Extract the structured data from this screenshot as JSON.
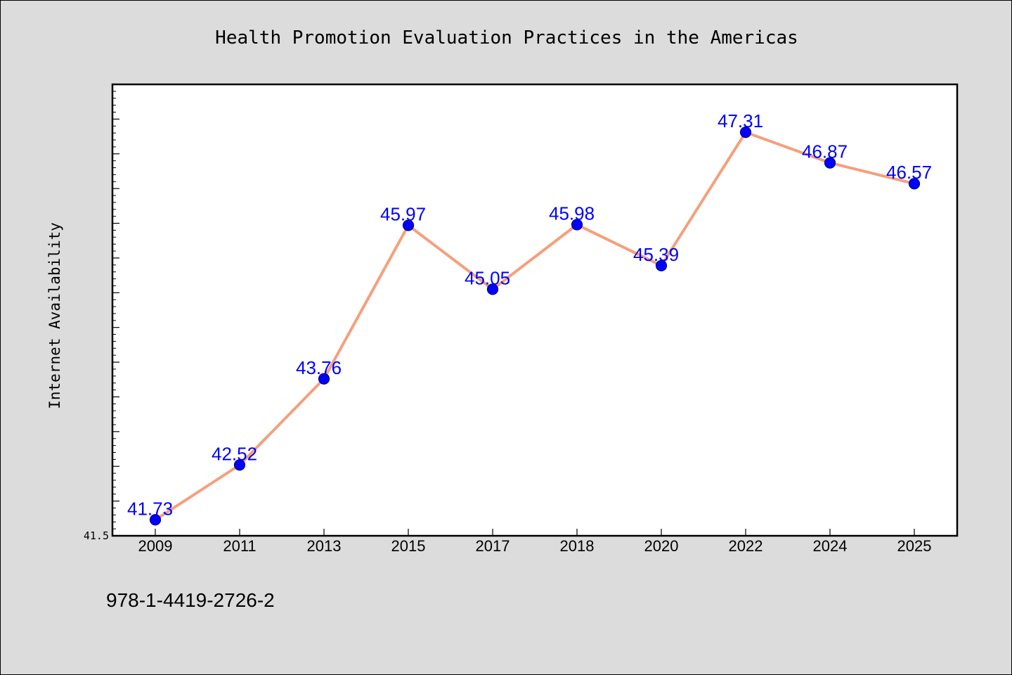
{
  "chart_data": {
    "type": "line",
    "title": "Health Promotion Evaluation Practices in the Americas",
    "ylabel": "Internet Availability",
    "xlabel": "",
    "categories": [
      "2009",
      "2011",
      "2013",
      "2015",
      "2017",
      "2018",
      "2020",
      "2022",
      "2024",
      "2025"
    ],
    "series": [
      {
        "values": [
          41.73,
          42.52,
          43.76,
          45.97,
          45.05,
          45.98,
          45.39,
          47.31,
          46.87,
          46.57
        ]
      }
    ],
    "data_labels": [
      "41.73",
      "42.52",
      "43.76",
      "45.97",
      "45.05",
      "45.98",
      "45.39",
      "47.31",
      "46.87",
      "46.57]"
    ],
    "ylim": [
      41.5,
      48.0
    ],
    "yticks_labeled": [
      "41.5"
    ],
    "grid": false,
    "legend": "none",
    "colors": {
      "line": "#f4a07c",
      "marker": "#0000ff",
      "marker_edge": "#000080",
      "data_label": "#0000ff",
      "plot_background": "#ffffff",
      "figure_background": "#dcdcdc"
    }
  },
  "footer": {
    "isbn": "978-1-4419-2726-2"
  }
}
